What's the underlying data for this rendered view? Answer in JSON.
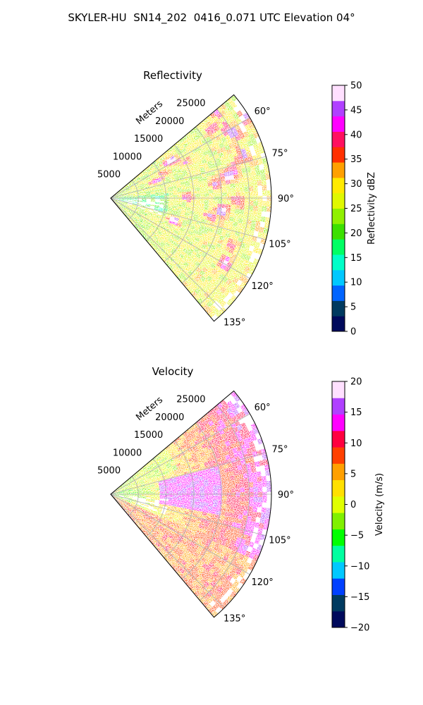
{
  "figure": {
    "suptitle": "SKYLER-HU  SN14_202  0416_0.071 UTC Elevation 04°"
  },
  "chart_data": [
    {
      "type": "heatmap",
      "projection": "polar-sector",
      "title": "Reflectivity",
      "radial_label": "Meters",
      "radial_ticks": [
        5000,
        10000,
        15000,
        20000,
        25000
      ],
      "radial_tick_labels": [
        "5000",
        "10000",
        "15000",
        "20000",
        "25000"
      ],
      "r_max": 29000,
      "theta_range_deg": [
        50,
        140
      ],
      "theta_ticks": [
        60,
        75,
        90,
        105,
        120,
        135
      ],
      "theta_tick_labels": [
        "60°",
        "75°",
        "90°",
        "105°",
        "120°",
        "135°"
      ],
      "grid": true,
      "colorbar": {
        "label": "Reflectivity dBZ",
        "range": [
          0,
          50
        ],
        "ticks": [
          0,
          5,
          10,
          15,
          20,
          25,
          30,
          35,
          40,
          45,
          50
        ],
        "tick_labels": [
          "0",
          "5",
          "10",
          "15",
          "20",
          "25",
          "30",
          "35",
          "40",
          "45",
          "50"
        ],
        "colors": [
          "#000a5c",
          "#003a60",
          "#0064ff",
          "#00c8ff",
          "#00ffc8",
          "#00ff64",
          "#3ce000",
          "#90f000",
          "#e0f800",
          "#ffea00",
          "#ffa000",
          "#ff3000",
          "#ff1060",
          "#ff00ff",
          "#b040ff",
          "#ffe0ff"
        ]
      },
      "data_summary": {
        "dominant_range": [
          20,
          30
        ],
        "cores": [
          35,
          45
        ]
      }
    },
    {
      "type": "heatmap",
      "projection": "polar-sector",
      "title": "Velocity",
      "radial_label": "Meters",
      "radial_ticks": [
        5000,
        10000,
        15000,
        20000,
        25000
      ],
      "radial_tick_labels": [
        "5000",
        "10000",
        "15000",
        "20000",
        "25000"
      ],
      "r_max": 29000,
      "theta_range_deg": [
        50,
        140
      ],
      "theta_ticks": [
        60,
        75,
        90,
        105,
        120,
        135
      ],
      "theta_tick_labels": [
        "60°",
        "75°",
        "90°",
        "105°",
        "120°",
        "135°"
      ],
      "grid": true,
      "colorbar": {
        "label": "Velocity (m/s)",
        "range": [
          -20,
          20
        ],
        "ticks": [
          -20,
          -15,
          -10,
          -5,
          0,
          5,
          10,
          15,
          20
        ],
        "tick_labels": [
          "−20",
          "−15",
          "−10",
          "−5",
          "0",
          "5",
          "10",
          "15",
          "20"
        ],
        "colors": [
          "#000a5c",
          "#003a60",
          "#0040ff",
          "#00c8ff",
          "#00ffa0",
          "#00ff00",
          "#80f000",
          "#e0ff00",
          "#ffe000",
          "#ffa000",
          "#ff4000",
          "#ff0040",
          "#ff00ff",
          "#b040ff",
          "#ffe0ff"
        ]
      },
      "data_summary": {
        "dominant_range": [
          5,
          15
        ],
        "near_field": [
          -5,
          0
        ]
      }
    }
  ]
}
